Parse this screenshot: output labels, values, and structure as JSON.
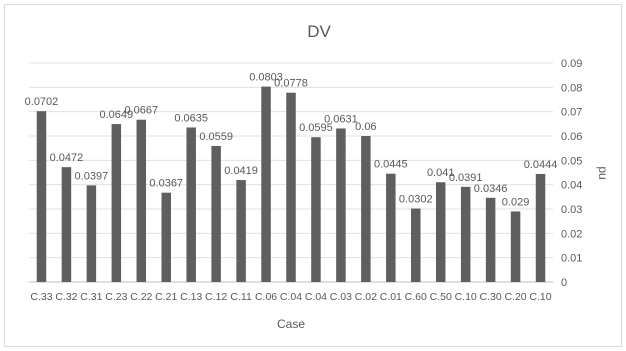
{
  "chart_data": {
    "type": "bar",
    "title": "DV",
    "xlabel": "Case",
    "ylabel": "pu",
    "ylim": [
      0,
      0.09
    ],
    "y_ticks": [
      "0",
      "0.01",
      "0.02",
      "0.03",
      "0.04",
      "0.05",
      "0.06",
      "0.07",
      "0.08",
      "0.09"
    ],
    "y_axis_side": "right",
    "grid": true,
    "legend": "none",
    "bar_color": "#5f5f5f",
    "categories": [
      "C.33",
      "C.32",
      "C.31",
      "C.23",
      "C.22",
      "C.21",
      "C.13",
      "C.12",
      "C.11",
      "C.06",
      "C.04",
      "C.04",
      "C.03",
      "C.02",
      "C.01",
      "C.60",
      "C.50",
      "C.10",
      "C.30",
      "C.20",
      "C.10"
    ],
    "values": [
      0.0702,
      0.0472,
      0.0397,
      0.0649,
      0.0667,
      0.0367,
      0.0635,
      0.0559,
      0.0419,
      0.0803,
      0.0778,
      0.0595,
      0.0631,
      0.06,
      0.0445,
      0.0302,
      0.041,
      0.0391,
      0.0346,
      0.029,
      0.0444
    ],
    "labels": [
      "0.0702",
      "0.0472",
      "0.0397",
      "0.0649",
      "0.0667",
      "0.0367",
      "0.0635",
      "0.0559",
      "0.0419",
      "0.0803",
      "0.0778",
      "0.0595",
      "0.0631",
      "0.06",
      "0.0445",
      "0.0302",
      "0.041",
      "0.0391",
      "0.0346",
      "0.029",
      "0.0444"
    ]
  }
}
